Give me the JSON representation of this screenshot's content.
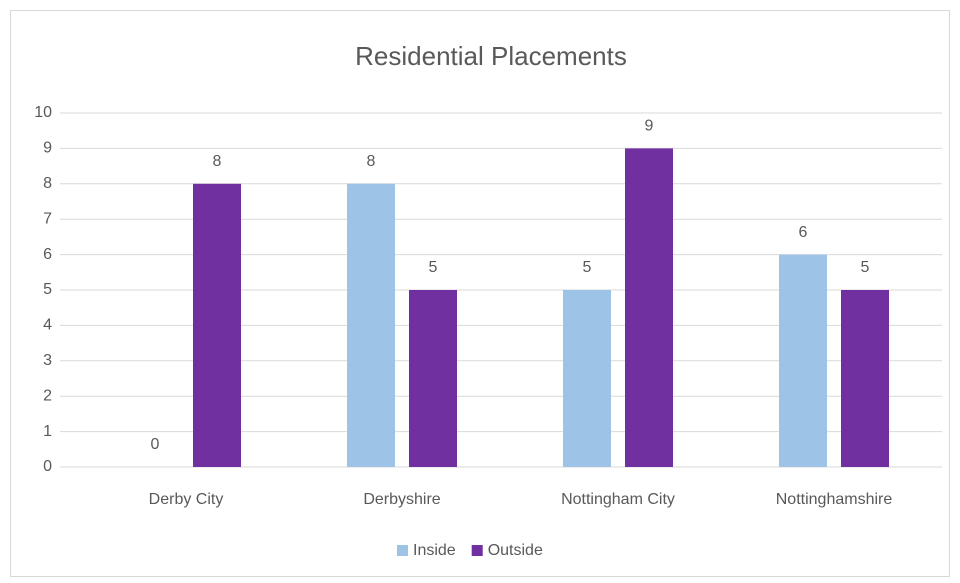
{
  "chart_data": {
    "type": "bar",
    "title": "Residential Placements",
    "categories": [
      "Derby City",
      "Derbyshire",
      "Nottingham City",
      "Nottinghamshire"
    ],
    "series": [
      {
        "name": "Inside",
        "color": "#9dc3e6",
        "values": [
          0,
          8,
          5,
          6
        ]
      },
      {
        "name": "Outside",
        "color": "#7030a0",
        "values": [
          8,
          5,
          9,
          5
        ]
      }
    ],
    "ylim": [
      0,
      10
    ],
    "yticks": [
      0,
      1,
      2,
      3,
      4,
      5,
      6,
      7,
      8,
      9,
      10
    ],
    "grid": true,
    "legend": "bottom"
  }
}
